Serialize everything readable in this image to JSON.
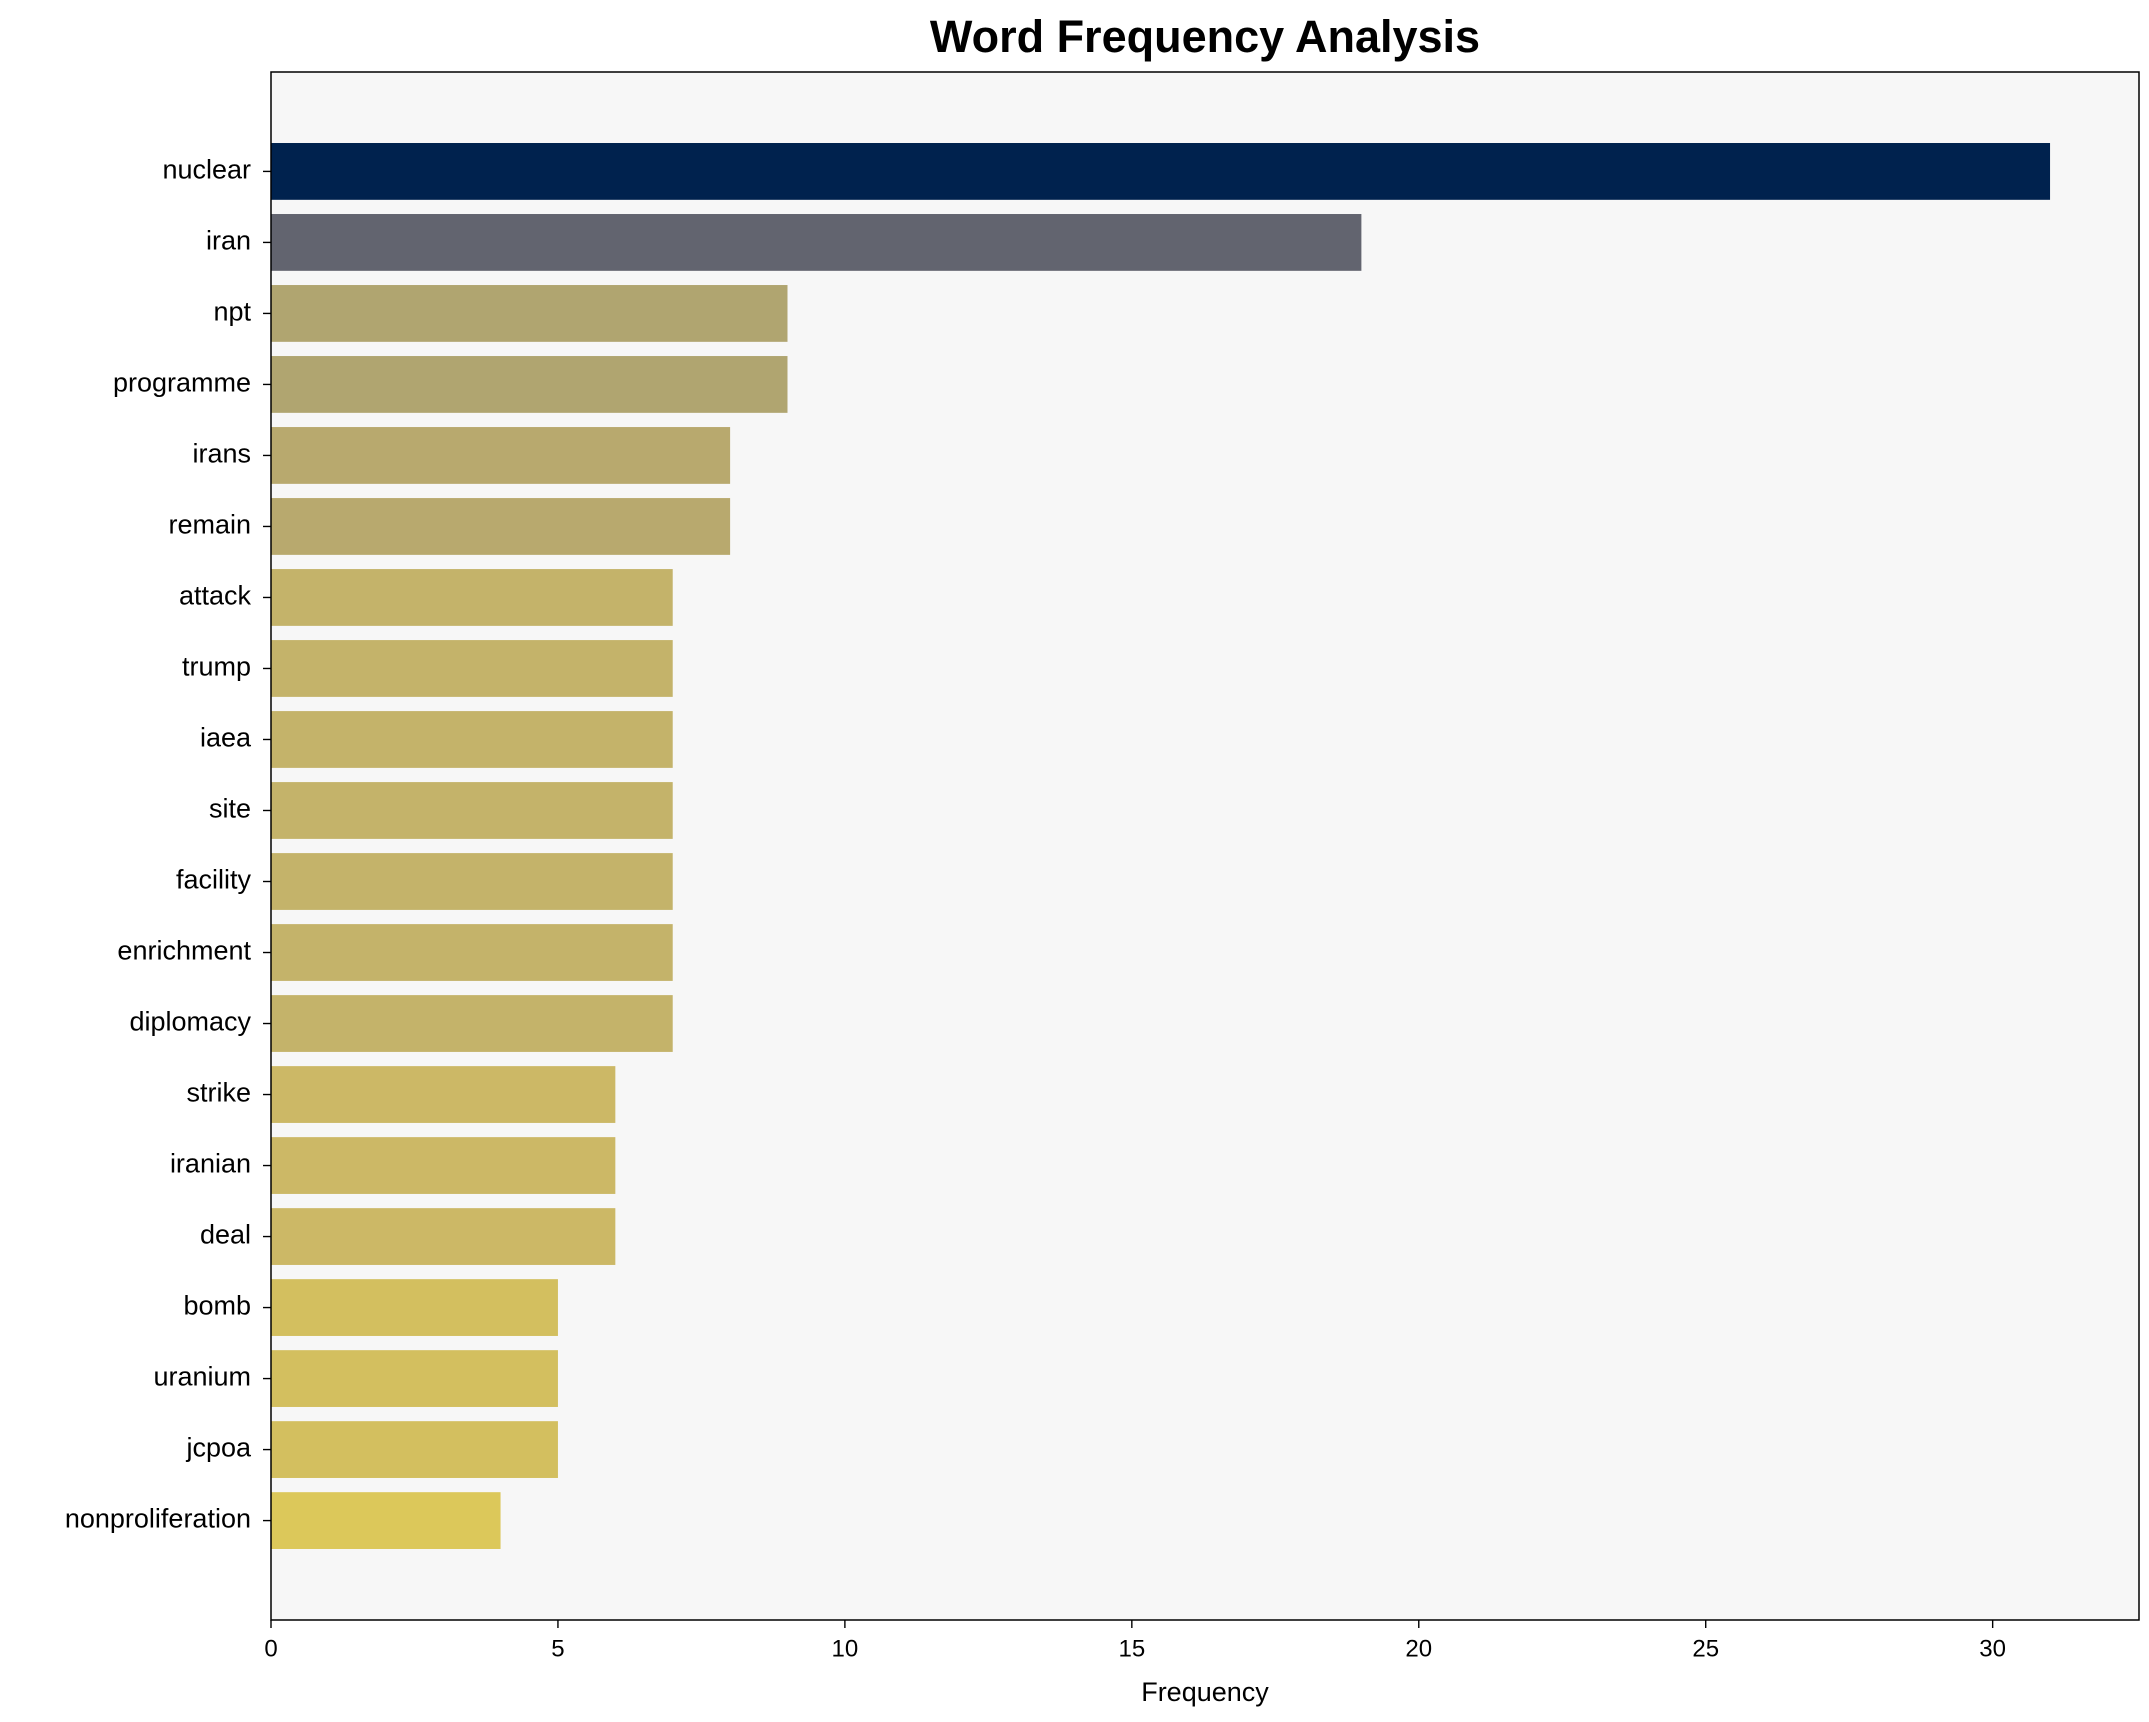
{
  "chart_data": {
    "type": "barh",
    "title": "Word Frequency Analysis",
    "x_label": "Frequency",
    "categories": [
      "nuclear",
      "iran",
      "npt",
      "programme",
      "irans",
      "remain",
      "attack",
      "trump",
      "iaea",
      "site",
      "facility",
      "enrichment",
      "diplomacy",
      "strike",
      "iranian",
      "deal",
      "bomb",
      "uranium",
      "jcpoa",
      "nonproliferation"
    ],
    "values": [
      31,
      19,
      9,
      9,
      8,
      8,
      7,
      7,
      7,
      7,
      7,
      7,
      7,
      6,
      6,
      6,
      5,
      5,
      5,
      4
    ],
    "colors": [
      "#00224e",
      "#62646f",
      "#b0a570",
      "#b0a570",
      "#b8a96e",
      "#b8a96e",
      "#c4b36a",
      "#c4b36a",
      "#c4b36a",
      "#c4b36a",
      "#c4b36a",
      "#c4b36a",
      "#c4b36a",
      "#ccb866",
      "#ccb866",
      "#ccb866",
      "#d3bf5f",
      "#d3bf5f",
      "#d3bf5f",
      "#dcc85a"
    ],
    "xlim": [
      0,
      32.55
    ],
    "xticks": [
      0,
      5,
      10,
      15,
      20,
      25,
      30
    ]
  }
}
